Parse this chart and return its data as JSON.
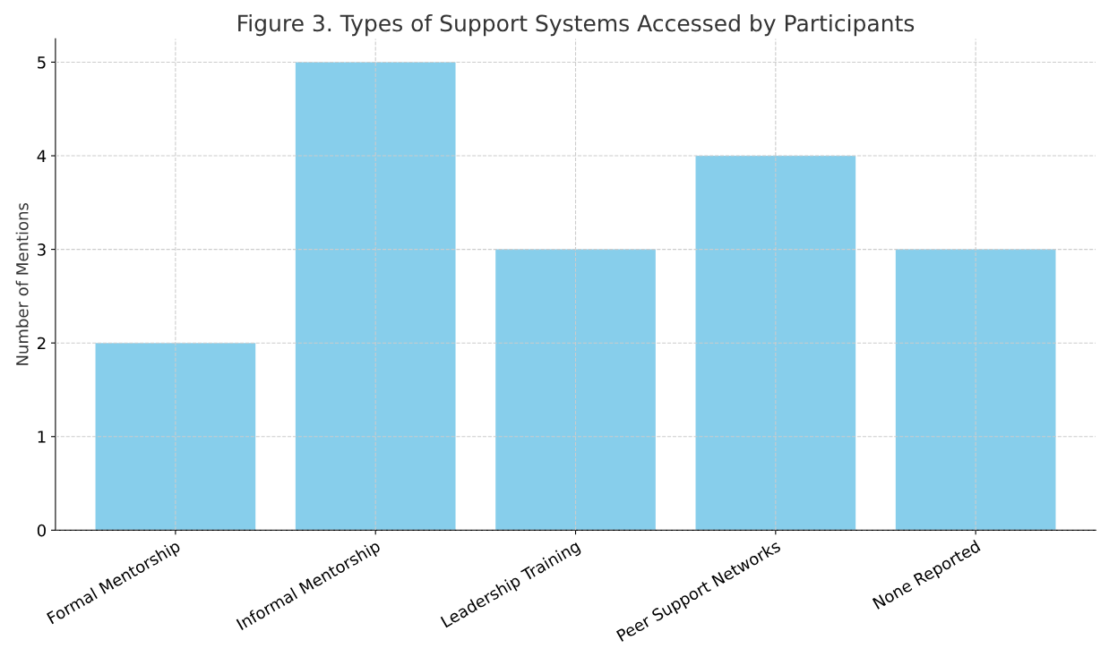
{
  "chart_data": {
    "type": "bar",
    "title": "Figure 3. Types of Support Systems Accessed by Participants",
    "ylabel": "Number of Mentions",
    "categories": [
      "Formal Mentorship",
      "Informal Mentorship",
      "Leadership Training",
      "Peer Support Networks",
      "None Reported"
    ],
    "values": [
      2,
      5,
      3,
      4,
      3
    ],
    "color": "#87ceeb",
    "ylim": [
      0,
      5.25
    ],
    "yticks": [
      0,
      1,
      2,
      3,
      4,
      5
    ],
    "grid": true,
    "line_style": "dashed"
  }
}
